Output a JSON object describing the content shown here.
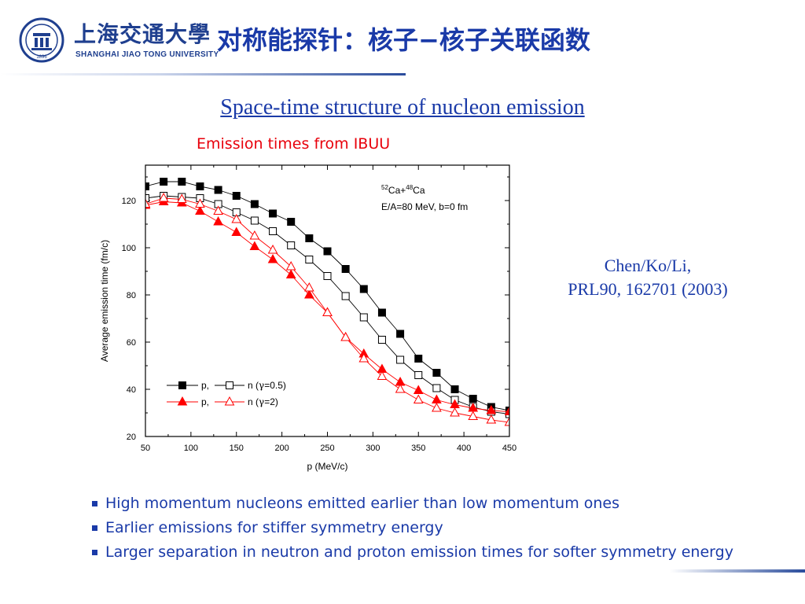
{
  "header": {
    "logo_cn": "上海交通大學",
    "logo_en": "SHANGHAI JIAO TONG UNIVERSITY",
    "logo_year": "1896",
    "title": "对称能探针：核子−核子关联函数"
  },
  "subtitle": "Space-time structure of nucleon emission",
  "chart_caption": "Emission times from IBUU",
  "citation": {
    "line1": "Chen/Ko/Li,",
    "line2": "PRL90, 162701 (2003)"
  },
  "bullets": [
    "High momentum nucleons emitted earlier than low momentum ones",
    "Earlier emissions for stiffer symmetry energy",
    "Larger separation in neutron and proton emission times for softer symmetry energy"
  ],
  "colors": {
    "title_blue": "#1a3aa8",
    "caption_red": "#e8000b",
    "series_red": "#ff0000",
    "series_black": "#000000"
  },
  "chart_data": {
    "type": "line",
    "xlabel": "p (MeV/c)",
    "ylabel": "Average emission time (fm/c)",
    "xlim": [
      50,
      450
    ],
    "ylim": [
      20,
      135
    ],
    "xticks": [
      50,
      100,
      150,
      200,
      250,
      300,
      350,
      400,
      450
    ],
    "yticks": [
      20,
      40,
      60,
      80,
      100,
      120
    ],
    "annotation": {
      "reaction_sup1": "52",
      "reaction_el1": "Ca+",
      "reaction_sup2": "48",
      "reaction_el2": "Ca",
      "line2": "E/A=80 MeV, b=0 fm"
    },
    "legend": [
      {
        "label_a": "p,",
        "label_b": "n (",
        "gamma": "γ",
        "label_c": "=0.5)"
      },
      {
        "label_a": "p,",
        "label_b": "n (",
        "gamma": "γ",
        "label_c": "=2)"
      }
    ],
    "x": [
      50,
      70,
      90,
      110,
      130,
      150,
      170,
      190,
      210,
      230,
      250,
      270,
      290,
      310,
      330,
      350,
      370,
      390,
      410,
      430,
      450
    ],
    "series": [
      {
        "particle": "p",
        "gamma": 0.5,
        "marker": "square-filled",
        "color": "#000000",
        "values": [
          126,
          128,
          128,
          126,
          124.5,
          122,
          118.5,
          114.5,
          111,
          104,
          98.5,
          91,
          82.5,
          72.5,
          63.5,
          53,
          47,
          40,
          36,
          32.5,
          31
        ]
      },
      {
        "particle": "n",
        "gamma": 0.5,
        "marker": "square-open",
        "color": "#000000",
        "values": [
          121,
          122,
          121.5,
          121,
          118.5,
          115,
          111.5,
          107,
          101,
          95,
          88,
          79.5,
          70.5,
          61,
          52.5,
          46,
          40.5,
          35.5,
          32.5,
          30.5,
          29.5
        ]
      },
      {
        "particle": "p",
        "gamma": 2,
        "marker": "triangle-filled",
        "color": "#ff0000",
        "values": [
          118,
          119.5,
          119,
          115.5,
          111,
          106.5,
          100.5,
          95,
          88.5,
          80,
          72.5,
          62,
          55,
          48.5,
          43,
          39.5,
          35.5,
          33.5,
          32,
          31,
          30.5
        ]
      },
      {
        "particle": "n",
        "gamma": 2,
        "marker": "triangle-open",
        "color": "#ff0000",
        "values": [
          118.5,
          121,
          120.5,
          118.5,
          115.5,
          112,
          105,
          99,
          92,
          83,
          72.5,
          62,
          53,
          45.5,
          40,
          35.5,
          32,
          30,
          28.5,
          27,
          26
        ]
      }
    ]
  }
}
